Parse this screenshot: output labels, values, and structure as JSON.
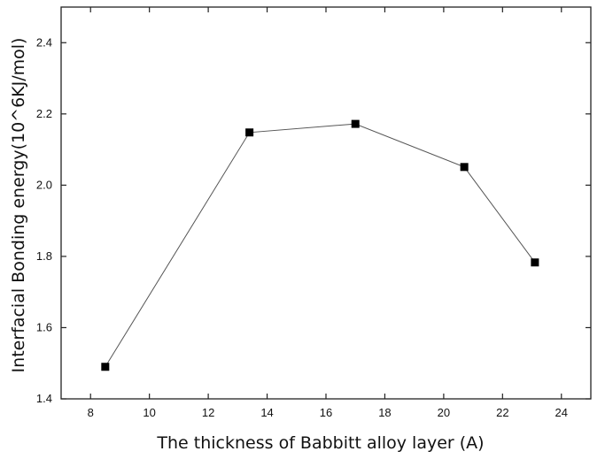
{
  "chart_data": {
    "type": "line",
    "title": "",
    "xlabel": "The thickness of Babbitt alloy layer (A)",
    "ylabel": "Interfacial Bonding energy(10^6KJ/mol)",
    "xlim": [
      7,
      25
    ],
    "ylim": [
      1.4,
      2.5
    ],
    "xticks": [
      8,
      10,
      12,
      14,
      16,
      18,
      20,
      22,
      24
    ],
    "yticks": [
      1.4,
      1.6,
      1.8,
      2.0,
      2.2,
      2.4
    ],
    "xtick_labels": [
      "8",
      "10",
      "12",
      "14",
      "16",
      "18",
      "20",
      "22",
      "24"
    ],
    "ytick_labels": [
      "1.4",
      "1.6",
      "1.8",
      "2.0",
      "2.2",
      "2.4"
    ],
    "grid": false,
    "marker": "square",
    "colors": {
      "line": "#555555",
      "marker": "#000000",
      "axis": "#222222"
    },
    "series": [
      {
        "x": [
          8.5,
          13.4,
          17.0,
          20.7,
          23.1
        ],
        "y": [
          1.49,
          2.148,
          2.172,
          2.051,
          1.783
        ]
      }
    ]
  }
}
